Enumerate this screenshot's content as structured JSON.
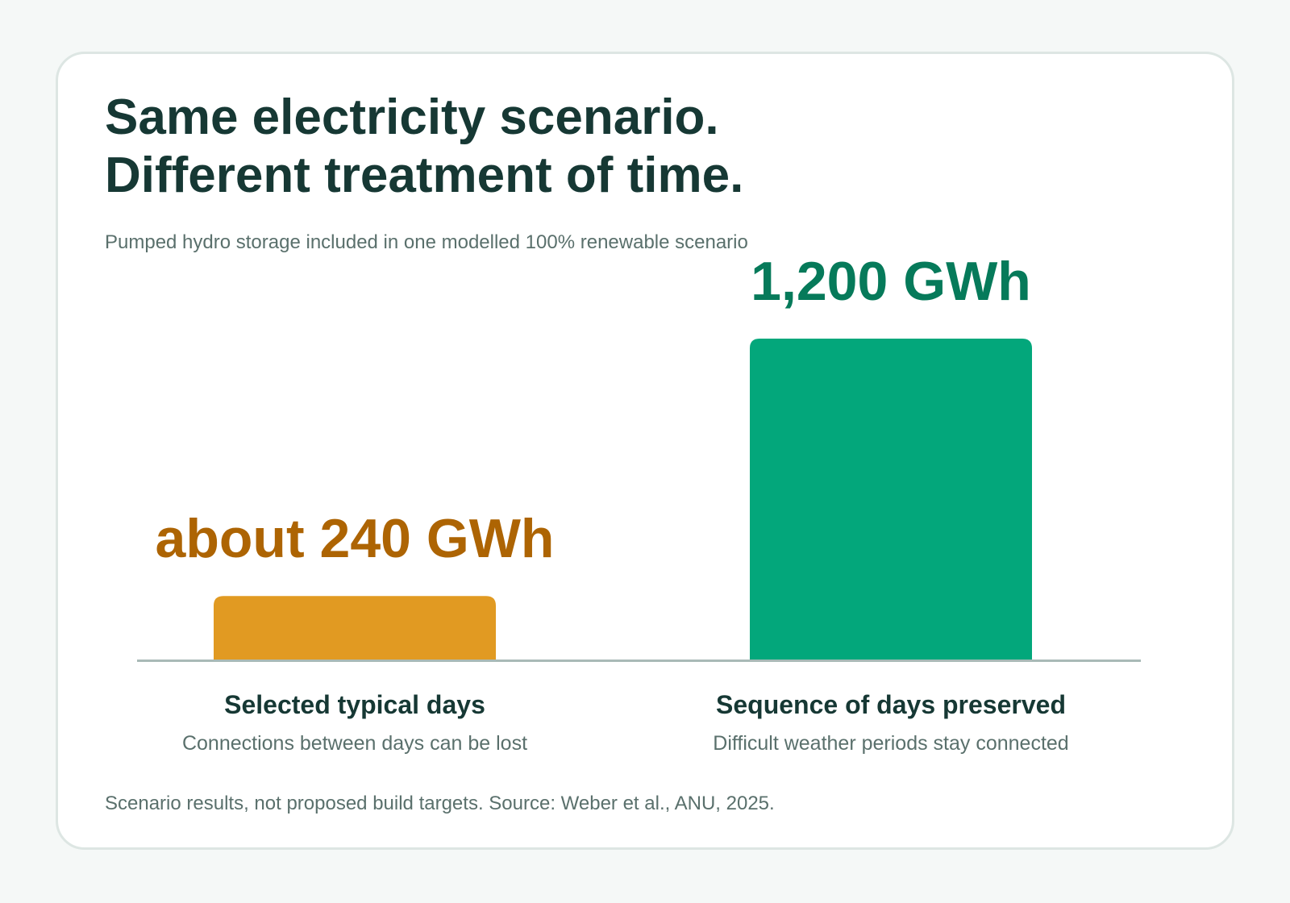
{
  "title_lines": [
    "Same electricity scenario.",
    "Different treatment of time."
  ],
  "subtitle": "Pumped hydro storage included in one modelled 100% renewable scenario",
  "footnote": "Scenario results, not proposed build targets. Source: Weber et al., ANU, 2025.",
  "colors": {
    "text_dark": "#163834",
    "text_muted": "#5a706c",
    "baseline": "#a9bab7"
  },
  "chart_data": {
    "type": "bar",
    "unit": "GWh",
    "categories": [
      "Selected typical days",
      "Sequence of days preserved"
    ],
    "values": [
      240,
      1200
    ],
    "value_labels": [
      "about 240 GWh",
      "1,200 GWh"
    ],
    "category_notes": [
      "Connections between days can be lost",
      "Difficult weather periods stay connected"
    ],
    "bar_colors": [
      "#e19a22",
      "#03a77b"
    ],
    "label_colors": [
      "#ad6403",
      "#067a5a"
    ],
    "ylim": [
      0,
      1200
    ],
    "grid": false
  }
}
